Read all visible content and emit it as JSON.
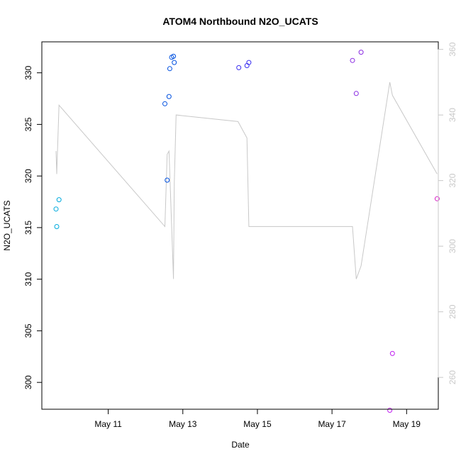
{
  "chart_data": {
    "type": "scatter",
    "title": "ATOM4 Northbound N2O_UCATS",
    "xlabel": "Date",
    "ylabel": "N2O_UCATS",
    "x_ticks": [
      "May 11",
      "May 13",
      "May 15",
      "May 17",
      "May 19"
    ],
    "x_tick_days": [
      11,
      13,
      15,
      17,
      19
    ],
    "xlim_days": [
      9.22,
      19.85
    ],
    "y_ticks": [
      300,
      305,
      310,
      315,
      320,
      325,
      330
    ],
    "ylim": [
      297.4,
      333.0
    ],
    "y2_ticks": [
      260,
      280,
      300,
      320,
      340,
      360
    ],
    "y2lim": [
      250.3,
      362.3
    ],
    "grid": false,
    "legend": "none",
    "points": [
      {
        "x": 9.6,
        "y": 316.8,
        "color": "#00aadd"
      },
      {
        "x": 9.62,
        "y": 315.1,
        "color": "#00aadd"
      },
      {
        "x": 9.68,
        "y": 317.7,
        "color": "#00aadd"
      },
      {
        "x": 12.52,
        "y": 327.0,
        "color": "#0050e0"
      },
      {
        "x": 12.58,
        "y": 319.6,
        "color": "#0050e0"
      },
      {
        "x": 12.63,
        "y": 327.7,
        "color": "#0050e0"
      },
      {
        "x": 12.65,
        "y": 330.4,
        "color": "#0050e0"
      },
      {
        "x": 12.7,
        "y": 331.5,
        "color": "#0050e0"
      },
      {
        "x": 12.75,
        "y": 331.6,
        "color": "#0050e0"
      },
      {
        "x": 12.77,
        "y": 331.0,
        "color": "#0050e0"
      },
      {
        "x": 14.5,
        "y": 330.5,
        "color": "#3a2ff0"
      },
      {
        "x": 14.72,
        "y": 330.7,
        "color": "#3a2ff0"
      },
      {
        "x": 14.77,
        "y": 331.0,
        "color": "#3a2ff0"
      },
      {
        "x": 17.55,
        "y": 331.2,
        "color": "#8a2be2"
      },
      {
        "x": 17.65,
        "y": 328.0,
        "color": "#8a2be2"
      },
      {
        "x": 17.78,
        "y": 332.0,
        "color": "#8a2be2"
      },
      {
        "x": 18.55,
        "y": 297.3,
        "color": "#c020f0"
      },
      {
        "x": 18.62,
        "y": 302.8,
        "color": "#c020f0"
      },
      {
        "x": 19.82,
        "y": 317.8,
        "color": "#d820c8"
      }
    ],
    "secondary_line": {
      "color": "#c8c8c8",
      "x": [
        9.6,
        9.62,
        9.68,
        12.52,
        12.58,
        12.63,
        12.75,
        12.77,
        12.82,
        14.48,
        14.72,
        14.77,
        17.55,
        17.65,
        17.78,
        18.55,
        18.62,
        19.82
      ],
      "y": [
        329,
        322,
        343,
        306,
        328,
        329,
        290,
        319,
        340,
        338,
        333,
        306,
        306,
        290,
        294,
        350,
        346,
        322
      ]
    }
  }
}
